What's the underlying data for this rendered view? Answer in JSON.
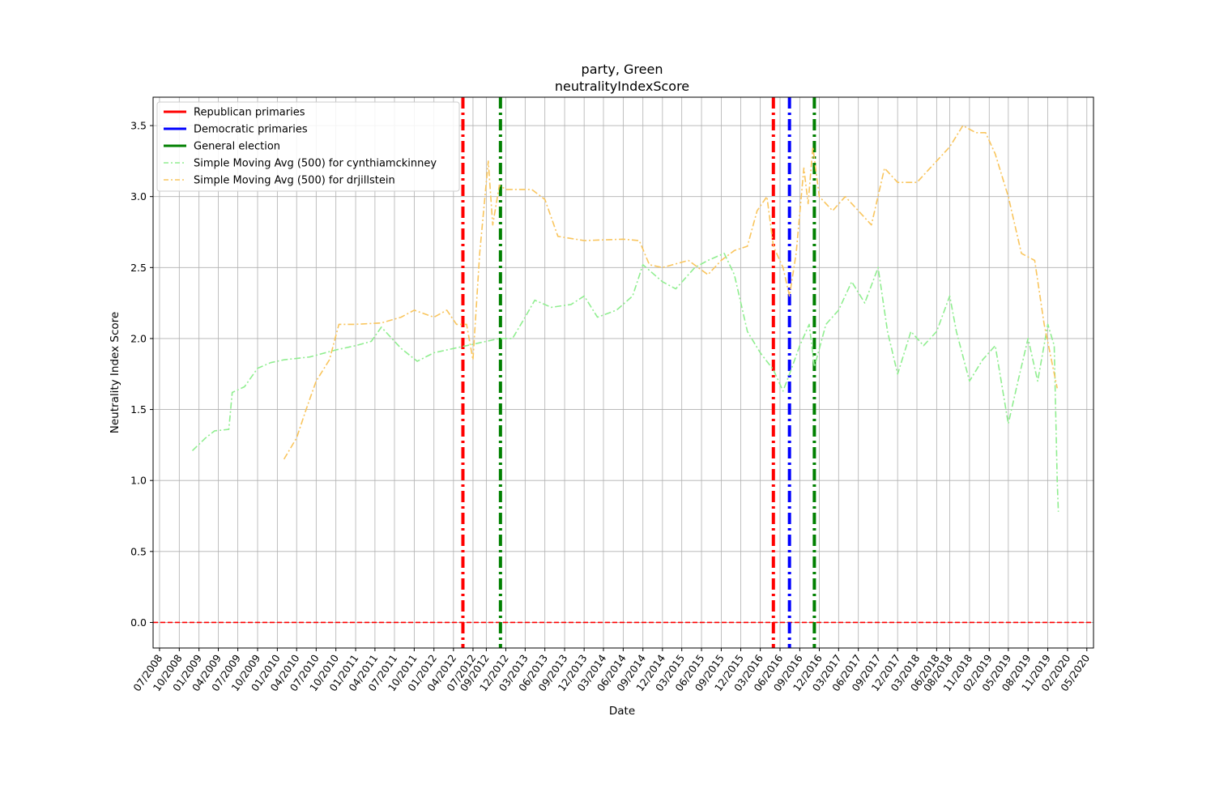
{
  "chart_data": {
    "type": "line",
    "title": [
      "party, Green",
      "neutralityIndexScore"
    ],
    "xlabel": "Date",
    "ylabel": "Neutrality Index Score",
    "xlim": [
      "2008-06-01",
      "2020-06-01"
    ],
    "ylim": [
      -0.18,
      3.7
    ],
    "grid": true,
    "legend_position": "top-left",
    "x_ticks": [
      "07/2008",
      "10/2008",
      "01/2009",
      "04/2009",
      "07/2009",
      "10/2009",
      "01/2010",
      "04/2010",
      "07/2010",
      "10/2010",
      "01/2011",
      "04/2011",
      "07/2011",
      "10/2011",
      "01/2012",
      "04/2012",
      "07/2012",
      "09/2012",
      "12/2012",
      "03/2013",
      "06/2013",
      "09/2013",
      "12/2013",
      "03/2014",
      "06/2014",
      "09/2014",
      "12/2014",
      "03/2015",
      "06/2015",
      "09/2015",
      "12/2015",
      "03/2016",
      "06/2016",
      "09/2016",
      "12/2016",
      "03/2017",
      "06/2017",
      "09/2017",
      "12/2017",
      "03/2018",
      "06/2018",
      "08/2018",
      "11/2018",
      "02/2019",
      "05/2019",
      "08/2019",
      "11/2019",
      "02/2020",
      "05/2020"
    ],
    "y_ticks": [
      "0.0",
      "0.5",
      "1.0",
      "1.5",
      "2.0",
      "2.5",
      "3.0",
      "3.5"
    ],
    "y_tick_values": [
      0,
      0.5,
      1.0,
      1.5,
      2.0,
      2.5,
      3.0,
      3.5
    ],
    "reference_lines": [
      {
        "type": "horizontal",
        "y": 0.0,
        "color": "#ff0000",
        "style": "dashed"
      },
      {
        "type": "vertical",
        "x": "2012-05-15",
        "color": "#ff0000",
        "style": "dashdot",
        "series": "Republican primaries"
      },
      {
        "type": "vertical",
        "x": "2012-11-06",
        "color": "#008000",
        "style": "dashdot",
        "series": "General election"
      },
      {
        "type": "vertical",
        "x": "2016-05-01",
        "color": "#ff0000",
        "style": "dashdot",
        "series": "Republican primaries"
      },
      {
        "type": "vertical",
        "x": "2016-07-15",
        "color": "#0000ff",
        "style": "dashdot",
        "series": "Democratic primaries"
      },
      {
        "type": "vertical",
        "x": "2016-11-08",
        "color": "#008000",
        "style": "dashdot",
        "series": "General election"
      }
    ],
    "legend": [
      {
        "label": "Republican primaries",
        "color": "#ff0000",
        "style": "solid-thick"
      },
      {
        "label": "Democratic primaries",
        "color": "#0000ff",
        "style": "solid-thick"
      },
      {
        "label": "General election",
        "color": "#008000",
        "style": "solid-thick"
      },
      {
        "label": "Simple Moving Avg (500) for cynthiamckinney",
        "color": "#90ee90",
        "style": "dashdot"
      },
      {
        "label": "Simple Moving Avg (500) for drjillstein",
        "color": "#f9c55d",
        "style": "dashdot"
      }
    ],
    "series": [
      {
        "name": "Simple Moving Avg (500) for cynthiamckinney",
        "color": "#90ee90",
        "x": [
          "2008-12-01",
          "2009-02-01",
          "2009-03-15",
          "2009-05-20",
          "2009-06-05",
          "2009-08-01",
          "2009-10-01",
          "2009-12-01",
          "2010-02-01",
          "2010-06-01",
          "2010-10-01",
          "2011-01-01",
          "2011-03-15",
          "2011-05-01",
          "2011-08-01",
          "2011-10-15",
          "2012-01-01",
          "2012-05-01",
          "2012-08-01",
          "2012-11-01",
          "2013-01-01",
          "2013-03-01",
          "2013-04-15",
          "2013-07-01",
          "2013-10-01",
          "2013-12-01",
          "2014-02-01",
          "2014-05-01",
          "2014-07-15",
          "2014-09-01",
          "2014-12-01",
          "2015-02-01",
          "2015-05-01",
          "2015-07-01",
          "2015-09-15",
          "2015-11-01",
          "2016-01-01",
          "2016-03-01",
          "2016-05-01",
          "2016-06-15",
          "2016-07-15",
          "2016-09-01",
          "2016-10-15",
          "2016-11-08",
          "2017-01-01",
          "2017-03-01",
          "2017-05-01",
          "2017-07-01",
          "2017-09-01",
          "2017-10-15",
          "2017-12-01",
          "2018-02-01",
          "2018-04-01",
          "2018-06-01",
          "2018-08-01",
          "2018-09-01",
          "2018-11-01",
          "2019-01-01",
          "2019-03-01",
          "2019-05-01",
          "2019-06-15",
          "2019-08-01",
          "2019-09-15",
          "2019-11-01",
          "2019-12-01",
          "2019-12-15",
          "2019-12-20"
        ],
        "y": [
          1.21,
          1.3,
          1.35,
          1.36,
          1.62,
          1.66,
          1.79,
          1.83,
          1.85,
          1.87,
          1.92,
          1.95,
          1.98,
          2.08,
          1.93,
          1.84,
          1.9,
          1.94,
          1.97,
          2.0,
          2.0,
          2.15,
          2.27,
          2.22,
          2.24,
          2.3,
          2.15,
          2.2,
          2.3,
          2.52,
          2.4,
          2.35,
          2.5,
          2.55,
          2.6,
          2.45,
          2.05,
          1.9,
          1.78,
          1.63,
          1.75,
          1.95,
          2.1,
          1.8,
          2.1,
          2.2,
          2.4,
          2.25,
          2.5,
          2.05,
          1.75,
          2.05,
          1.95,
          2.05,
          2.3,
          2.05,
          1.7,
          1.85,
          1.95,
          1.4,
          1.7,
          2.0,
          1.7,
          2.1,
          1.95,
          1.0,
          0.78
        ]
      },
      {
        "name": "Simple Moving Avg (500) for drjillstein",
        "color": "#f9c55d",
        "x": [
          "2010-02-01",
          "2010-04-01",
          "2010-05-15",
          "2010-07-01",
          "2010-09-01",
          "2010-10-15",
          "2011-01-01",
          "2011-05-01",
          "2011-08-01",
          "2011-10-01",
          "2012-01-01",
          "2012-03-01",
          "2012-04-15",
          "2012-06-01",
          "2012-07-01",
          "2012-08-01",
          "2012-09-10",
          "2012-10-01",
          "2012-11-01",
          "2012-12-01",
          "2013-04-01",
          "2013-06-01",
          "2013-08-01",
          "2013-12-01",
          "2014-06-01",
          "2014-08-15",
          "2014-10-01",
          "2014-12-01",
          "2015-04-01",
          "2015-07-01",
          "2015-09-01",
          "2015-11-01",
          "2016-01-01",
          "2016-02-15",
          "2016-04-01",
          "2016-05-01",
          "2016-06-15",
          "2016-07-15",
          "2016-08-15",
          "2016-09-20",
          "2016-10-10",
          "2016-11-01",
          "2016-12-01",
          "2017-02-01",
          "2017-04-01",
          "2017-06-01",
          "2017-08-01",
          "2017-10-01",
          "2017-12-01",
          "2018-03-01",
          "2018-05-01",
          "2018-08-01",
          "2018-10-01",
          "2018-12-01",
          "2019-01-15",
          "2019-03-01",
          "2019-05-01",
          "2019-07-01",
          "2019-09-01",
          "2019-10-15",
          "2019-12-15"
        ],
        "y": [
          1.15,
          1.3,
          1.5,
          1.7,
          1.85,
          2.1,
          2.1,
          2.11,
          2.15,
          2.2,
          2.15,
          2.2,
          2.1,
          2.1,
          1.85,
          2.6,
          3.25,
          2.8,
          3.08,
          3.05,
          3.05,
          2.98,
          2.72,
          2.69,
          2.7,
          2.69,
          2.52,
          2.5,
          2.55,
          2.45,
          2.55,
          2.62,
          2.65,
          2.9,
          3.0,
          2.65,
          2.5,
          2.3,
          2.6,
          3.2,
          2.95,
          3.35,
          3.0,
          2.9,
          3.0,
          2.9,
          2.8,
          3.2,
          3.1,
          3.1,
          3.2,
          3.35,
          3.5,
          3.45,
          3.45,
          3.3,
          3.0,
          2.6,
          2.55,
          2.1,
          1.65
        ]
      }
    ]
  }
}
